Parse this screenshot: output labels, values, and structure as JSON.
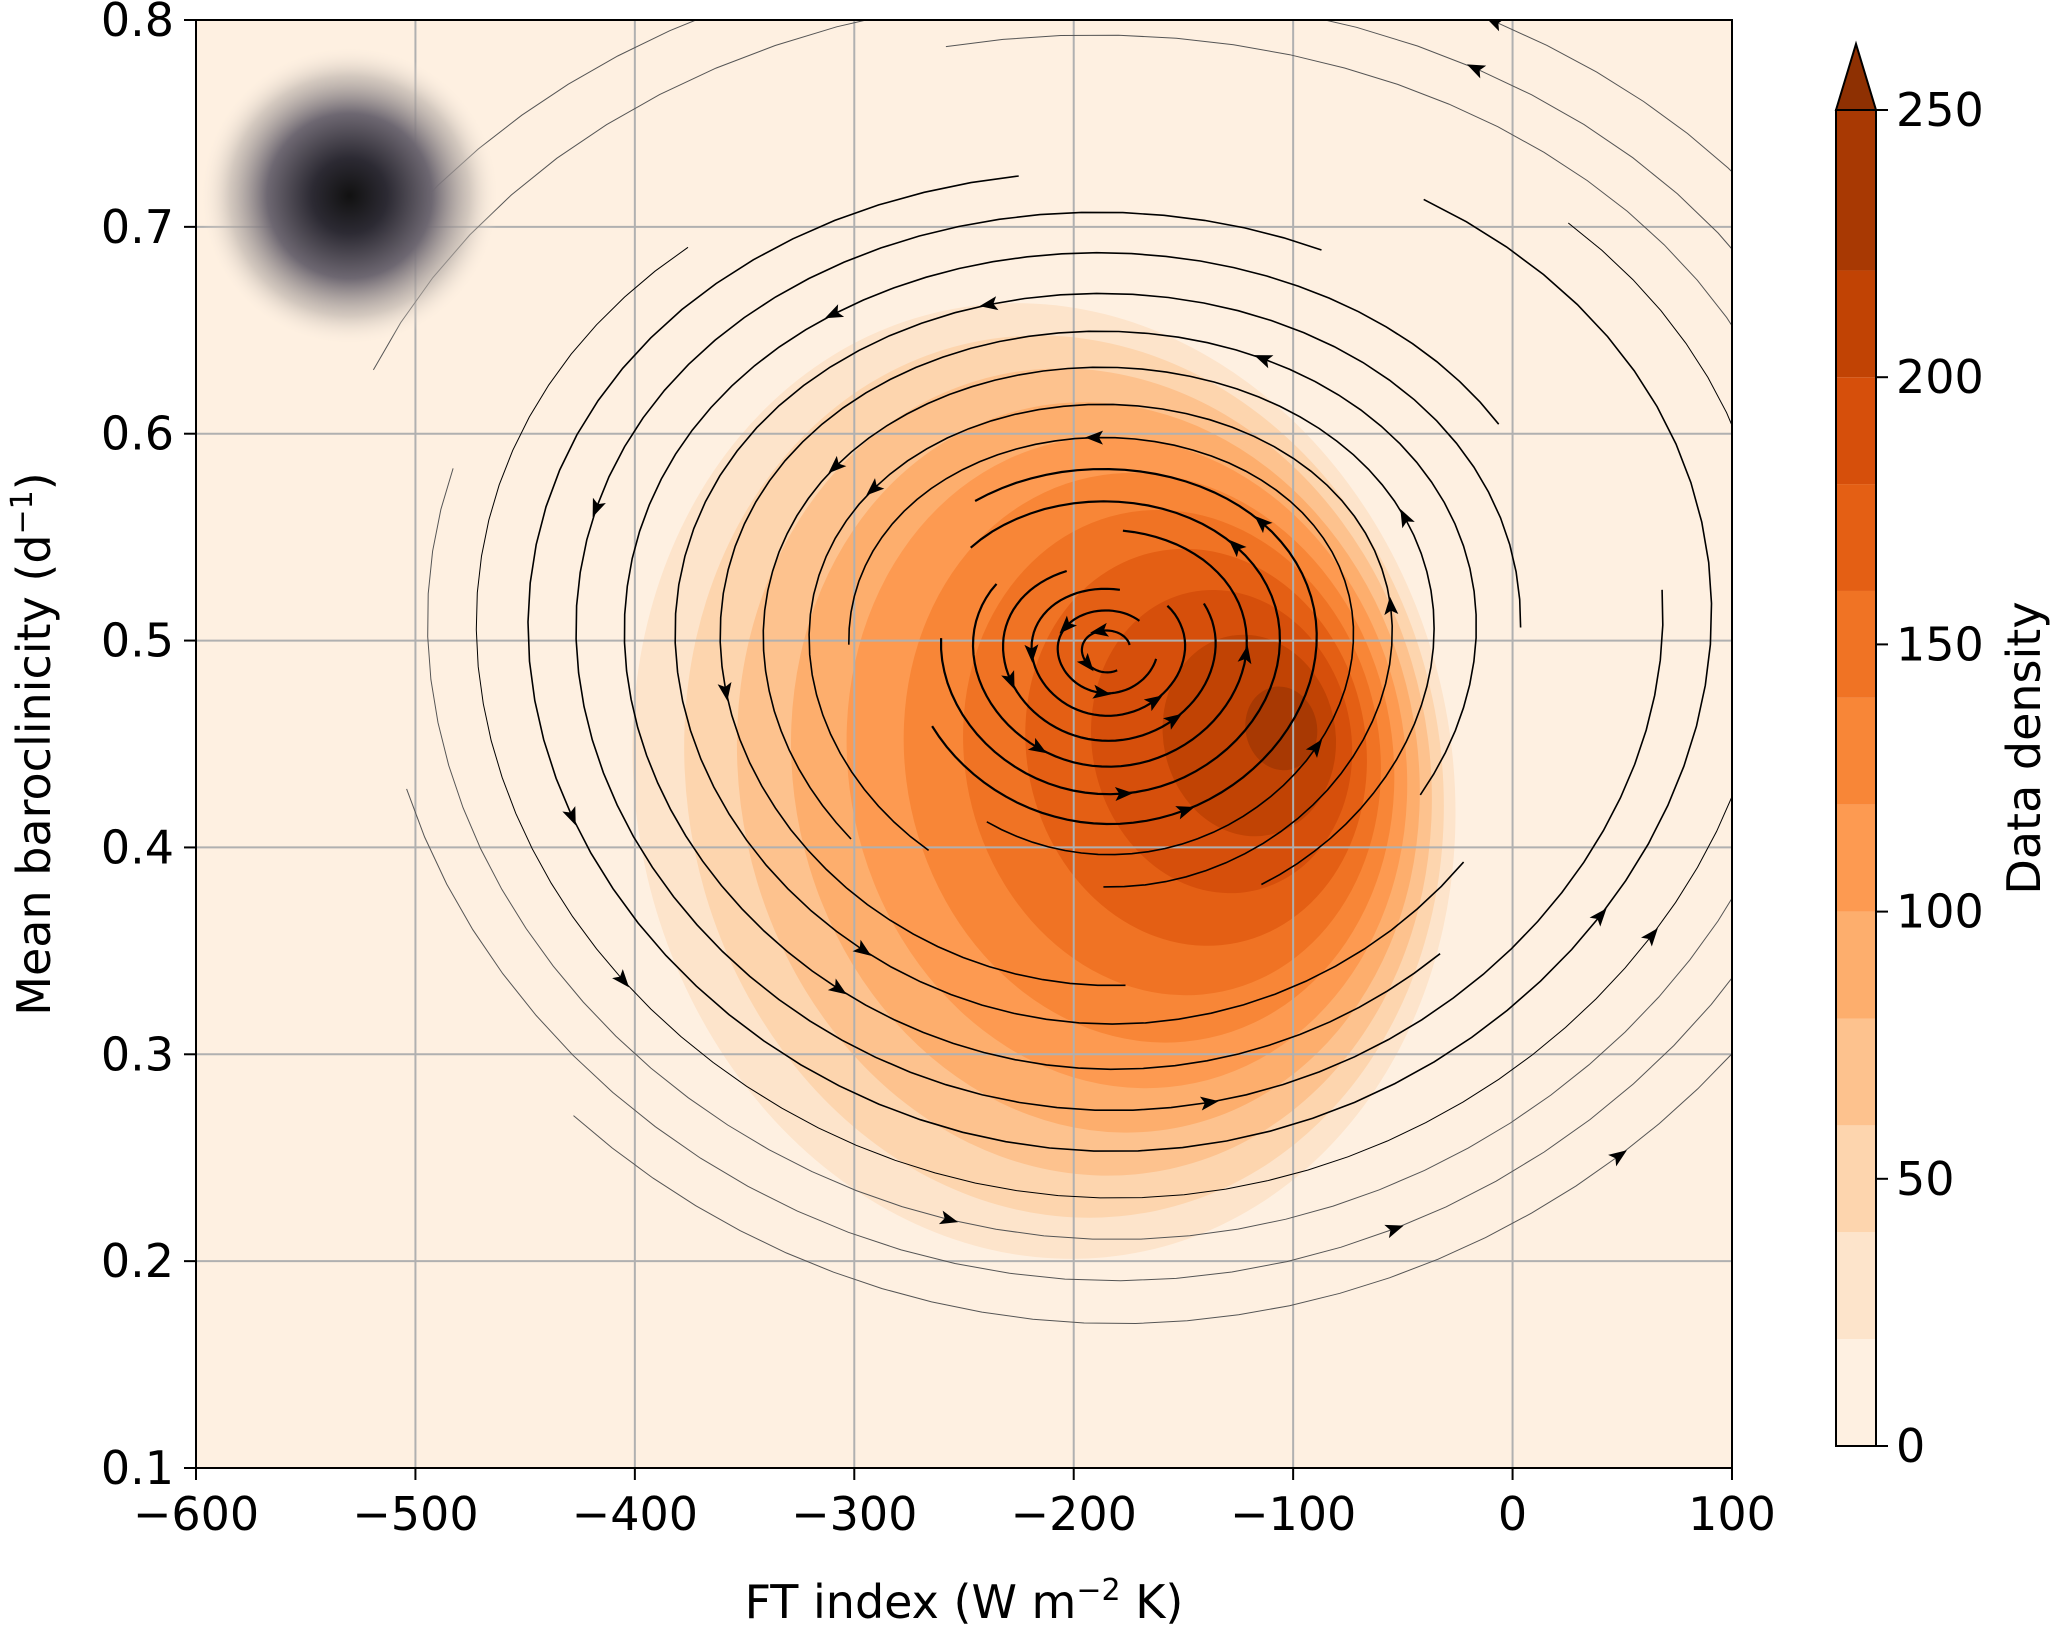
{
  "chart_data": {
    "type": "heatmap",
    "overlay": "streamlines",
    "title": "",
    "xlabel": {
      "base": "FT index (W m",
      "sup": "−2",
      "tail": " K)"
    },
    "ylabel": {
      "base": "Mean baroclinicity (d",
      "sup": "−1",
      "tail": ")"
    },
    "xlim": [
      -600,
      100
    ],
    "ylim": [
      0.1,
      0.8
    ],
    "xticks": [
      -600,
      -500,
      -400,
      -300,
      -200,
      -100,
      0,
      100
    ],
    "xtick_labels": [
      "−600",
      "−500",
      "−400",
      "−300",
      "−200",
      "−100",
      "0",
      "100"
    ],
    "yticks": [
      0.1,
      0.2,
      0.3,
      0.4,
      0.5,
      0.6,
      0.7,
      0.8
    ],
    "ytick_labels": [
      "0.1",
      "0.2",
      "0.3",
      "0.4",
      "0.5",
      "0.6",
      "0.7",
      "0.8"
    ],
    "grid": true,
    "density": {
      "peak_center": [
        -95,
        0.46
      ],
      "peak_value": 230,
      "secondary_center": [
        -185,
        0.49
      ],
      "extent_x": [
        -400,
        0
      ],
      "extent_y": [
        0.18,
        0.68
      ]
    },
    "marker": {
      "center": [
        -530,
        0.715
      ],
      "style": "dark radial blob"
    },
    "streamlines": {
      "vortex_center": [
        -185,
        0.495
      ],
      "rotation": "counterclockwise"
    },
    "colorbar": {
      "label": "Data density",
      "min": 0,
      "max": 250,
      "extend": "max",
      "ticks": [
        0,
        50,
        100,
        150,
        200,
        250
      ],
      "tick_labels": [
        "0",
        "50",
        "100",
        "150",
        "200",
        "250"
      ],
      "levels": [
        0,
        20,
        40,
        60,
        80,
        100,
        120,
        140,
        160,
        180,
        200,
        220,
        240
      ],
      "colors": [
        "#fef0e1",
        "#fde4cb",
        "#fdd5ae",
        "#fdc28e",
        "#fdae6d",
        "#fd9a51",
        "#f88637",
        "#f07324",
        "#e45f14",
        "#d64f0b",
        "#c14304",
        "#a83903",
        "#8e3002"
      ]
    }
  }
}
